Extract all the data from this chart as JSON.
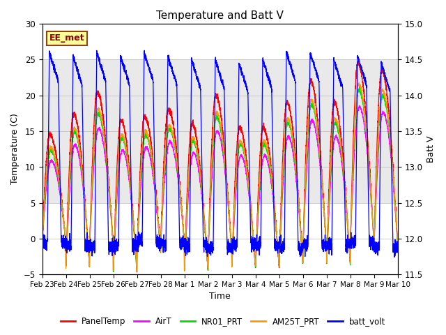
{
  "title": "Temperature and Batt V",
  "ylabel_left": "Temperature (C)",
  "ylabel_right": "Batt V",
  "xlabel": "Time",
  "ylim_left": [
    -5,
    30
  ],
  "ylim_right": [
    11.5,
    15.0
  ],
  "yticks_left": [
    -5,
    0,
    5,
    10,
    15,
    20,
    25,
    30
  ],
  "yticks_right": [
    11.5,
    12.0,
    12.5,
    13.0,
    13.5,
    14.0,
    14.5,
    15.0
  ],
  "station_label": "EE_met",
  "shaded_band": [
    5,
    25
  ],
  "shaded_color": "#e0e0e0",
  "colors": {
    "PanelTemp": "#ff0000",
    "AirT": "#ff00ff",
    "NR01_PRT": "#00dd00",
    "AM25T_PRT": "#ff9900",
    "batt_volt": "#0000ff"
  },
  "legend_labels": [
    "PanelTemp",
    "AirT",
    "NR01_PRT",
    "AM25T_PRT",
    "batt_volt"
  ],
  "n_days": 15,
  "ppd": 288,
  "xtick_labels": [
    "Feb 23",
    "Feb 24",
    "Feb 25",
    "Feb 26",
    "Feb 27",
    "Feb 28",
    "Mar 1",
    "Mar 2",
    "Mar 3",
    "Mar 4",
    "Mar 5",
    "Mar 6",
    "Mar 7",
    "Mar 8",
    "Mar 9",
    "Mar 10"
  ],
  "background_color": "#ffffff",
  "grid_color": "#bbbbbb",
  "title_fontsize": 11,
  "axis_fontsize": 9,
  "day_peak_temps": [
    14.5,
    17.5,
    20.5,
    16.5,
    17.0,
    18.0,
    16.0,
    20.0,
    15.5,
    15.5,
    19.0,
    22.0,
    19.0,
    24.5,
    23.5
  ],
  "day_min_temps": [
    -0.5,
    -4.0,
    -1.0,
    -4.5,
    -2.0,
    -0.5,
    -4.5,
    -2.0,
    -4.0,
    -4.0,
    -3.5,
    -1.5,
    -3.5,
    -0.5,
    -1.0
  ],
  "batt_peaks": [
    14.6,
    14.55,
    14.6,
    14.55,
    14.6,
    14.55,
    14.5,
    14.5,
    14.45,
    14.5,
    14.6,
    14.6,
    14.5,
    14.55,
    14.45
  ],
  "batt_nights": [
    11.95,
    11.92,
    11.88,
    11.9,
    11.95,
    11.92,
    11.9,
    11.88,
    11.92,
    11.9,
    11.88,
    11.92,
    11.9,
    11.95,
    11.88
  ]
}
